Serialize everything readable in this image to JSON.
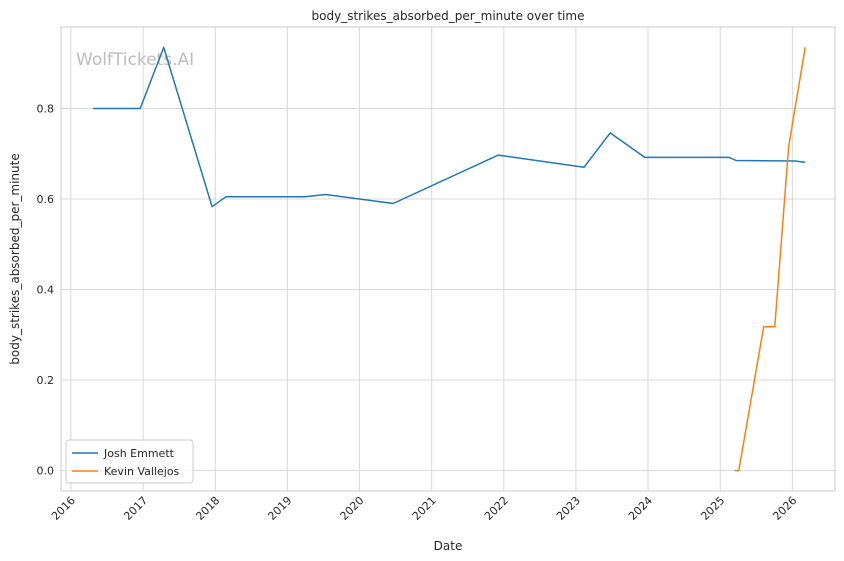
{
  "watermark": "WolfTickets.AI",
  "chart_data": {
    "type": "line",
    "title": "body_strikes_absorbed_per_minute over time",
    "xlabel": "Date",
    "ylabel": "body_strikes_absorbed_per_minute",
    "x_ticks": [
      "2016",
      "2017",
      "2018",
      "2019",
      "2020",
      "2021",
      "2022",
      "2023",
      "2024",
      "2025",
      "2026"
    ],
    "y_ticks": [
      "0.0",
      "0.2",
      "0.4",
      "0.6",
      "0.8"
    ],
    "xlim": [
      "2015-11-12",
      "2026-08-05"
    ],
    "ylim": [
      -0.045,
      0.98
    ],
    "grid": true,
    "legend_position": "lower-left",
    "series": [
      {
        "name": "Josh Emmett",
        "color": "#1f77b4",
        "x": [
          "2016-04-23",
          "2016-12-17",
          "2017-04-15",
          "2017-12-16",
          "2018-02-24",
          "2019-03-30",
          "2019-07-13",
          "2020-06-20",
          "2021-12-04",
          "2023-02-11",
          "2023-06-24",
          "2023-12-16",
          "2025-02-15",
          "2025-03-22",
          "2026-01-15",
          "2026-03-07"
        ],
        "y": [
          0.8,
          0.8,
          0.935,
          0.583,
          0.605,
          0.605,
          0.61,
          0.59,
          0.697,
          0.67,
          0.746,
          0.692,
          0.692,
          0.685,
          0.684,
          0.681
        ]
      },
      {
        "name": "Kevin Vallejos",
        "color": "#ff7f0e",
        "x": [
          "2025-03-15",
          "2025-04-05",
          "2025-08-09",
          "2025-10-04",
          "2025-12-13",
          "2026-03-07"
        ],
        "y": [
          0.0,
          0.0,
          0.318,
          0.318,
          0.715,
          0.935
        ]
      }
    ]
  }
}
